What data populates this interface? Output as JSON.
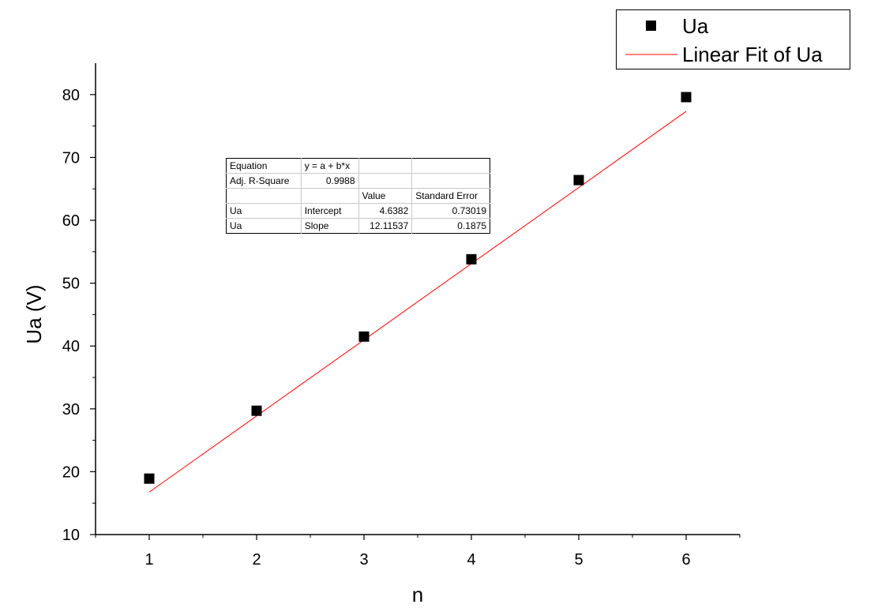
{
  "chart_data": {
    "type": "scatter",
    "xlabel": "n",
    "ylabel": "Ua (V)",
    "xlim": [
      0.5,
      6.5
    ],
    "ylim": [
      10,
      85
    ],
    "x_ticks": [
      1,
      2,
      3,
      4,
      5,
      6
    ],
    "y_ticks": [
      10,
      20,
      30,
      40,
      50,
      60,
      70,
      80
    ],
    "grid": false,
    "legend_position": "top-right",
    "series": [
      {
        "name": "Ua",
        "marker": "square",
        "color": "#000000",
        "x": [
          1,
          2,
          3,
          4,
          5,
          6
        ],
        "y": [
          18.9,
          29.7,
          41.5,
          53.8,
          66.4,
          79.6
        ]
      },
      {
        "name": "Linear Fit of Ua",
        "kind": "line",
        "color": "#ff0000",
        "x": [
          1,
          6
        ],
        "intercept": 4.6382,
        "slope": 12.11537
      }
    ],
    "fit_table": {
      "rows": [
        [
          "Equation",
          "y = a + b*x",
          "",
          ""
        ],
        [
          "Adj. R-Square",
          "0.9988",
          "",
          ""
        ],
        [
          "",
          "",
          "Value",
          "Standard Error"
        ],
        [
          "Ua",
          "Intercept",
          "4.6382",
          "0.73019"
        ],
        [
          "Ua",
          "Slope",
          "12.11537",
          "0.1875"
        ]
      ]
    }
  }
}
